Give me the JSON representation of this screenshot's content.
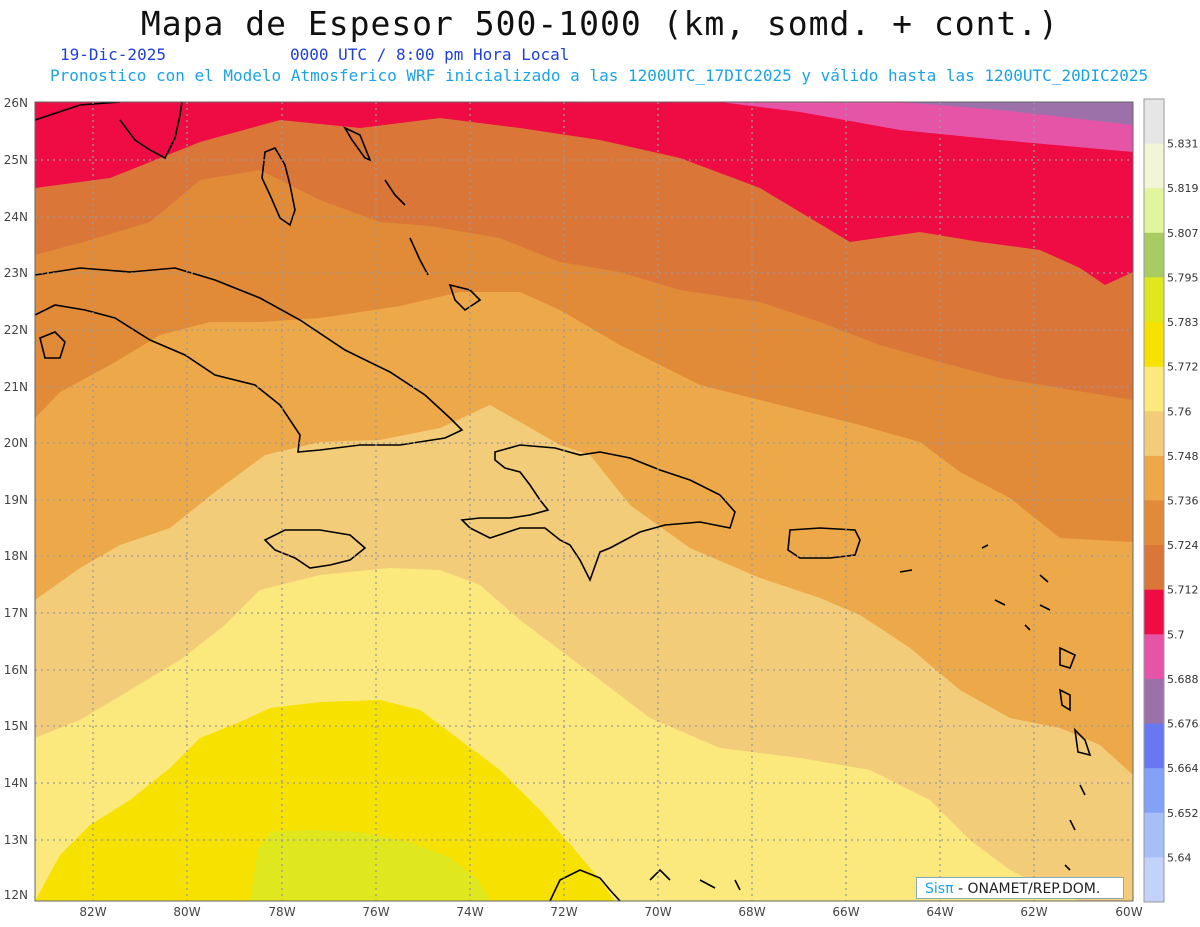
{
  "title": "Mapa de Espesor 500-1000 (km, somd. + cont.)",
  "date": "19-Dic-2025",
  "time": "0000 UTC / 8:00 pm Hora Local",
  "forecast_note": "Pronostico con el Modelo Atmosferico WRF inicializado a las 1200UTC_17DIC2025 y válido hasta las  1200UTC_20DIC2025",
  "credit": {
    "logo": "Sisπ",
    "text": " - ONAMET/REP.DOM."
  },
  "lon_labels": [
    "82W",
    "80W",
    "78W",
    "76W",
    "74W",
    "72W",
    "70W",
    "68W",
    "66W",
    "64W",
    "62W",
    "60W"
  ],
  "lat_labels": [
    "26N",
    "25N",
    "24N",
    "23N",
    "22N",
    "21N",
    "20N",
    "19N",
    "18N",
    "17N",
    "16N",
    "15N",
    "14N",
    "13N",
    "12N"
  ],
  "legend": {
    "values": [
      "5.831",
      "5.819",
      "5.807",
      "5.795",
      "5.783",
      "5.772",
      "5.76",
      "5.748",
      "5.736",
      "5.724",
      "5.712",
      "5.7",
      "5.688",
      "5.676",
      "5.664",
      "5.652",
      "5.64"
    ],
    "colors": [
      "#e6e6e6",
      "#f2f5d6",
      "#e2f49c",
      "#a8cc62",
      "#dfe81e",
      "#f7e100",
      "#fbe97e",
      "#f3cc79",
      "#eda84a",
      "#e18a38",
      "#d97638",
      "#ef0b43",
      "#e654a8",
      "#9c70a8",
      "#6877f2",
      "#82a2f7",
      "#a6bff7",
      "#c3d2fb"
    ]
  },
  "colors": {
    "coast": "#000000",
    "grid": "#9a9a9a",
    "contour": "#ffffff"
  }
}
